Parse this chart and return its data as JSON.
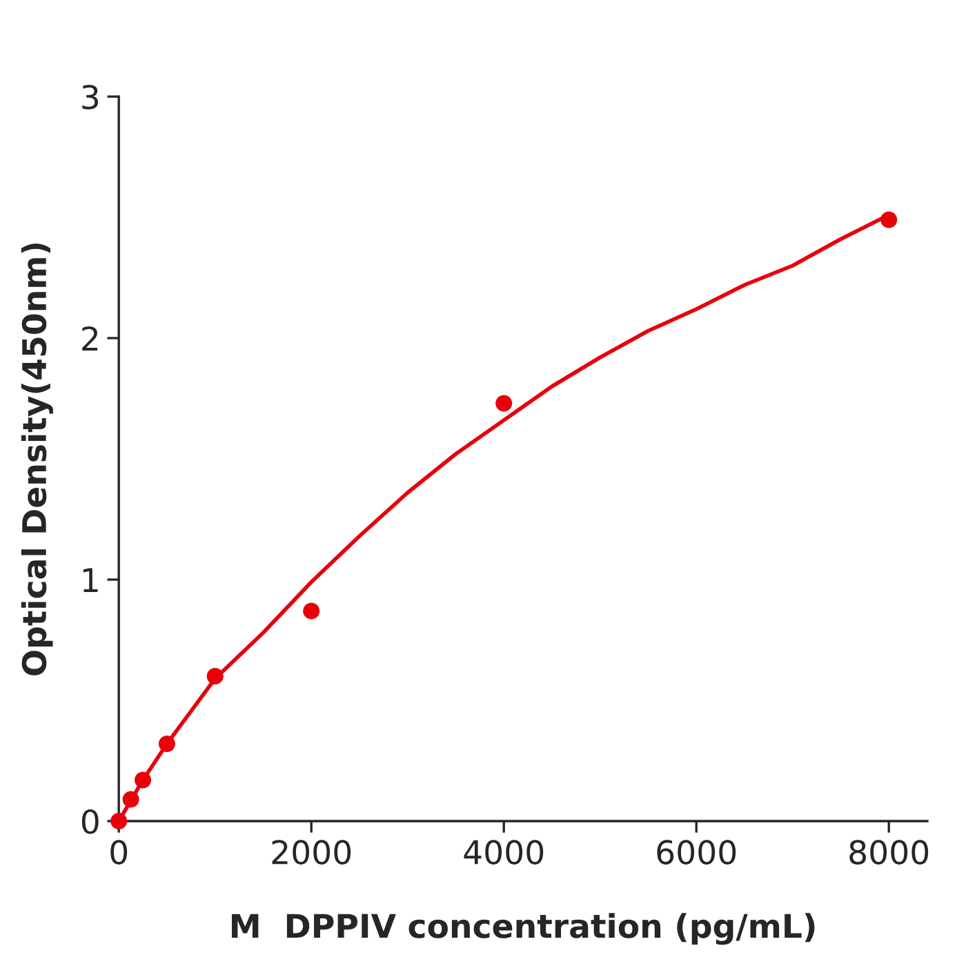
{
  "chart_data": {
    "type": "scatter",
    "xlabel": "M  DPPIV concentration (pg/mL)",
    "ylabel": "Optical Density(450nm)",
    "xlim": [
      0,
      8400
    ],
    "xticks": [
      0,
      2000,
      4000,
      6000,
      8000
    ],
    "ylim": [
      0,
      3
    ],
    "yticks": [
      0,
      1,
      2,
      3
    ],
    "grid": false,
    "legend": false,
    "series": [
      {
        "color": "#e8000b",
        "marker": "circle",
        "x": [
          0,
          125,
          250,
          500,
          1000,
          2000,
          4000,
          8000
        ],
        "values": [
          0,
          0.09,
          0.17,
          0.32,
          0.6,
          0.87,
          1.73,
          2.49
        ]
      },
      {
        "type": "line",
        "color": "#e8000b",
        "marker": "none",
        "line_style": "solid",
        "x": [
          0,
          250,
          500,
          1000,
          1500,
          2000,
          2500,
          3000,
          3500,
          4000,
          4500,
          5000,
          5500,
          6000,
          6500,
          7000,
          7500,
          8000
        ],
        "values": [
          0,
          0.17,
          0.32,
          0.59,
          0.78,
          0.99,
          1.18,
          1.36,
          1.52,
          1.66,
          1.8,
          1.92,
          2.03,
          2.12,
          2.22,
          2.3,
          2.41,
          2.51
        ]
      }
    ]
  }
}
